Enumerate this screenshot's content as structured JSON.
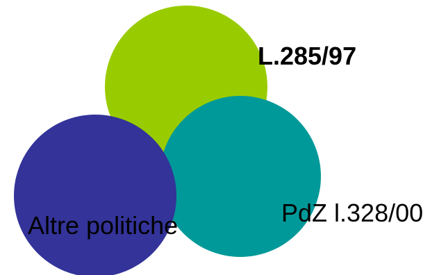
{
  "circles": [
    {
      "id": "law-285-97",
      "label": "L.285/97",
      "color": "#99CC00",
      "bold": true
    },
    {
      "id": "pdz-328-00",
      "label": "PdZ l.328/00",
      "color": "#009999",
      "bold": false
    },
    {
      "id": "other-policies",
      "label": "Altre politiche",
      "color": "#333399",
      "bold": false
    }
  ]
}
